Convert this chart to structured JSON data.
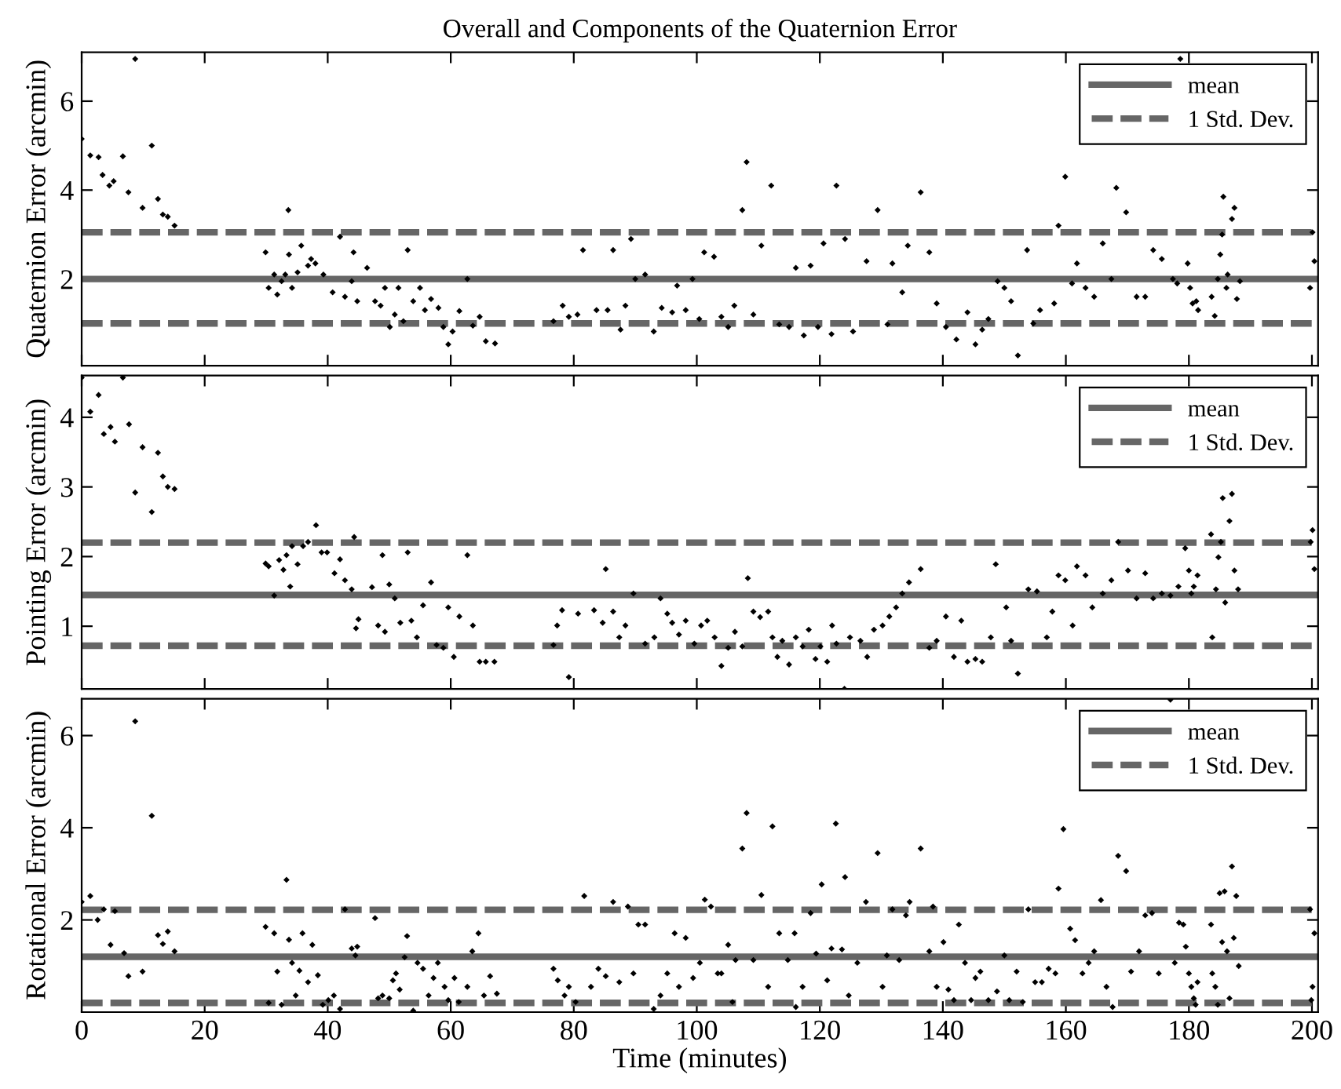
{
  "chart_data": [
    {
      "type": "scatter",
      "title": "Overall and Components of the Quaternion Error",
      "ylabel": "Quaternion Error (arcmin)",
      "xlim": [
        0,
        201
      ],
      "xticks": [
        0,
        20,
        40,
        60,
        80,
        100,
        120,
        140,
        160,
        180,
        200
      ],
      "ylim": [
        0.05,
        7.1
      ],
      "yticks": [
        2,
        4,
        6
      ],
      "tick_labels": "y",
      "grid": false,
      "legend": "top right",
      "marker": "diamond",
      "series": [
        {
          "color": "#000000",
          "x": [
            0,
            1.4,
            2.75,
            3.4,
            4.5,
            5.2,
            6.7,
            7.6,
            8.7,
            9.9,
            11.4,
            12.4,
            13.2,
            14.0,
            15.1,
            29.9,
            30.4,
            31.3,
            31.8,
            32.5,
            33.1,
            33.6,
            33.7,
            34.2,
            35.1,
            35.7,
            36.8,
            37.3,
            38.0,
            39.3,
            40.8,
            42.0,
            42.8,
            43.9,
            44.2,
            44.8,
            46.4,
            47.7,
            48.6,
            49.3,
            50.1,
            50.9,
            51.5,
            52.3,
            53.0,
            53.9,
            55.0,
            55.8,
            56.8,
            58.0,
            58.8,
            59.6,
            60.3,
            61.4,
            62.7,
            63.6,
            64.7,
            65.7,
            67.2,
            76.7,
            78.2,
            79.2,
            80.6,
            81.5,
            83.7,
            85.5,
            86.4,
            87.6,
            88.4,
            89.3,
            90.0,
            91.6,
            93.0,
            94.3,
            96.0,
            96.8,
            98.2,
            99.3,
            100.4,
            101.2,
            102.8,
            104.0,
            105.1,
            106.1,
            107.4,
            108.1,
            109.2,
            110.5,
            112.1,
            113.4,
            115.0,
            116.1,
            117.4,
            118.5,
            119.7,
            120.6,
            121.9,
            122.7,
            124.1,
            125.4,
            127.6,
            129.4,
            131.0,
            131.8,
            133.4,
            134.3,
            136.4,
            137.8,
            139.0,
            140.5,
            142.2,
            144.0,
            145.3,
            146.4,
            147.4,
            148.9,
            150.0,
            151.1,
            152.2,
            153.7,
            154.7,
            155.8,
            158.1,
            158.8,
            159.9,
            161.0,
            161.8,
            163.2,
            164.6,
            166.0,
            167.4,
            168.2,
            169.8,
            171.5,
            172.9,
            174.2,
            175.6,
            177.4,
            178.1,
            178.6,
            179.8,
            180.2,
            180.6,
            181.2,
            181.5,
            183.7,
            184.2,
            184.7,
            185.1,
            185.4,
            185.6,
            186.1,
            186.3,
            187.0,
            187.4,
            187.8,
            188.3,
            199.7,
            200.4,
            200.1
          ],
          "values": [
            5.15,
            4.78,
            4.74,
            4.34,
            4.1,
            4.2,
            4.76,
            3.95,
            6.95,
            3.6,
            5.0,
            3.8,
            3.45,
            3.4,
            3.2,
            2.6,
            1.8,
            2.1,
            1.65,
            1.95,
            2.1,
            3.55,
            2.55,
            1.8,
            2.15,
            2.75,
            2.3,
            2.45,
            2.35,
            2.1,
            1.7,
            2.95,
            1.6,
            1.95,
            2.6,
            1.5,
            2.25,
            1.5,
            1.4,
            1.8,
            0.92,
            1.2,
            1.8,
            1.05,
            2.65,
            1.5,
            1.8,
            1.3,
            1.55,
            1.35,
            0.92,
            0.53,
            0.82,
            1.28,
            2.0,
            0.95,
            1.15,
            0.6,
            0.55,
            1.05,
            1.4,
            1.15,
            1.2,
            2.65,
            1.3,
            1.3,
            2.65,
            0.86,
            1.4,
            2.9,
            2.0,
            2.1,
            0.82,
            1.35,
            1.25,
            1.85,
            1.3,
            2.0,
            1.1,
            2.6,
            2.5,
            1.15,
            0.92,
            1.4,
            3.55,
            4.63,
            1.2,
            2.75,
            4.1,
            0.98,
            0.92,
            2.25,
            0.73,
            2.3,
            0.92,
            2.8,
            0.76,
            4.1,
            2.9,
            0.82,
            2.4,
            3.55,
            0.98,
            2.35,
            1.7,
            2.75,
            3.95,
            2.6,
            1.45,
            0.92,
            0.64,
            1.25,
            0.53,
            0.86,
            1.1,
            1.95,
            1.8,
            1.5,
            0.28,
            2.65,
            1.0,
            1.3,
            1.45,
            3.2,
            4.3,
            1.9,
            2.35,
            1.8,
            1.6,
            2.8,
            2.0,
            4.05,
            3.5,
            1.6,
            1.6,
            2.65,
            2.45,
            2.0,
            1.9,
            6.95,
            2.35,
            1.8,
            1.45,
            1.5,
            1.3,
            1.6,
            1.17,
            2.0,
            2.55,
            3.0,
            3.85,
            1.8,
            2.1,
            3.35,
            3.6,
            1.55,
            1.95,
            1.8,
            2.4,
            3.05
          ]
        }
      ],
      "ref_lines": [
        {
          "axis": "y",
          "value": 2.0,
          "label": "mean",
          "color": "#666666",
          "line_style": "solid"
        },
        {
          "axis": "y",
          "value": 3.05,
          "label": "1 Std. Dev.",
          "color": "#666666",
          "line_style": "dashed"
        },
        {
          "axis": "y",
          "value": 1.0,
          "color": "#666666",
          "line_style": "dashed"
        }
      ]
    },
    {
      "type": "scatter",
      "ylabel": "Pointing Error (arcmin)",
      "xlim": [
        0,
        201
      ],
      "xticks": [
        0,
        20,
        40,
        60,
        80,
        100,
        120,
        140,
        160,
        180,
        200
      ],
      "ylim": [
        0.1,
        4.6
      ],
      "yticks": [
        1,
        2,
        3,
        4
      ],
      "tick_labels": "y",
      "grid": false,
      "legend": "top right",
      "marker": "diamond",
      "series": [
        {
          "color": "#000000",
          "x": [
            0,
            1.4,
            2.75,
            3.6,
            4.7,
            5.4,
            6.7,
            7.7,
            8.7,
            9.9,
            11.4,
            12.4,
            13.2,
            14.0,
            15.1,
            29.9,
            30.4,
            31.3,
            32.1,
            32.8,
            33.3,
            33.9,
            34.2,
            35.1,
            36.0,
            36.8,
            38.1,
            39.0,
            39.9,
            41.1,
            42.0,
            42.8,
            43.9,
            44.3,
            44.6,
            45.0,
            47.2,
            48.2,
            48.9,
            49.3,
            50.0,
            50.9,
            51.8,
            53.0,
            53.6,
            54.5,
            55.5,
            56.8,
            57.7,
            58.8,
            59.6,
            60.5,
            61.4,
            62.7,
            63.6,
            64.7,
            65.7,
            67.1,
            76.7,
            77.3,
            78.1,
            79.2,
            80.7,
            83.3,
            84.7,
            85.2,
            86.4,
            87.4,
            88.4,
            89.7,
            91.6,
            93.1,
            94.1,
            95.2,
            96.0,
            97.1,
            98.2,
            99.6,
            100.7,
            101.7,
            102.9,
            104.0,
            105.1,
            106.2,
            107.4,
            108.3,
            109.2,
            110.3,
            111.6,
            112.3,
            113.1,
            113.9,
            115.0,
            116.1,
            117.2,
            118.2,
            119.3,
            120.1,
            121.2,
            122.0,
            122.7,
            124.0,
            124.9,
            126.6,
            127.7,
            128.8,
            130.2,
            131.3,
            132.4,
            133.4,
            134.5,
            136.4,
            137.8,
            139.0,
            140.5,
            141.8,
            143.0,
            144.0,
            145.3,
            146.4,
            147.8,
            148.6,
            150.3,
            151.1,
            152.2,
            153.9,
            155.3,
            156.9,
            157.8,
            158.8,
            159.9,
            161.1,
            161.8,
            163.2,
            164.3,
            166.0,
            167.4,
            168.5,
            170.1,
            171.5,
            172.9,
            174.2,
            175.6,
            177.0,
            178.3,
            179.4,
            180.0,
            180.4,
            180.8,
            181.4,
            183.6,
            183.8,
            184.4,
            184.8,
            185.2,
            185.5,
            185.9,
            186.6,
            187.0,
            187.4,
            188.0,
            200.1,
            200.4,
            199.8
          ],
          "values": [
            4.57,
            4.08,
            4.32,
            3.76,
            3.86,
            3.65,
            4.57,
            3.9,
            2.92,
            3.57,
            2.64,
            3.49,
            3.15,
            3.0,
            2.97,
            1.9,
            1.86,
            1.44,
            1.95,
            1.81,
            2.02,
            1.57,
            2.15,
            1.89,
            2.15,
            2.21,
            2.45,
            2.06,
            2.06,
            1.76,
            1.96,
            1.66,
            1.53,
            2.28,
            0.97,
            1.1,
            1.56,
            1.01,
            2.02,
            0.92,
            1.6,
            1.4,
            1.05,
            2.06,
            1.08,
            0.84,
            1.3,
            1.63,
            0.73,
            0.69,
            1.27,
            0.56,
            1.14,
            2.02,
            1.01,
            0.49,
            0.49,
            0.49,
            0.73,
            1.01,
            1.23,
            0.27,
            1.18,
            1.23,
            1.05,
            1.82,
            1.21,
            0.84,
            1.01,
            1.47,
            0.75,
            0.84,
            1.4,
            1.18,
            1.05,
            0.88,
            1.08,
            0.75,
            1.01,
            1.08,
            0.84,
            0.43,
            0.69,
            0.92,
            0.71,
            1.69,
            1.21,
            1.13,
            1.21,
            0.84,
            0.56,
            0.79,
            0.45,
            0.84,
            0.71,
            0.95,
            0.53,
            0.71,
            0.49,
            1.01,
            0.75,
            0.1,
            0.84,
            0.79,
            0.56,
            0.95,
            1.01,
            1.14,
            1.27,
            1.47,
            1.63,
            1.82,
            0.69,
            0.79,
            1.14,
            0.56,
            1.08,
            0.49,
            0.53,
            0.49,
            0.84,
            1.89,
            1.27,
            0.79,
            0.32,
            1.53,
            1.5,
            0.84,
            1.21,
            1.73,
            1.66,
            1.01,
            1.86,
            1.73,
            1.27,
            1.47,
            1.66,
            2.21,
            1.8,
            1.4,
            1.76,
            1.4,
            1.47,
            1.44,
            1.57,
            2.12,
            1.8,
            1.47,
            1.57,
            1.73,
            2.32,
            0.84,
            1.53,
            1.99,
            2.21,
            2.84,
            1.34,
            2.51,
            2.9,
            1.8,
            1.53,
            2.38,
            1.82,
            2.21
          ]
        }
      ],
      "ref_lines": [
        {
          "axis": "y",
          "value": 1.45,
          "label": "mean",
          "color": "#666666",
          "line_style": "solid"
        },
        {
          "axis": "y",
          "value": 2.2,
          "label": "1 Std. Dev.",
          "color": "#666666",
          "line_style": "dashed"
        },
        {
          "axis": "y",
          "value": 0.72,
          "color": "#666666",
          "line_style": "dashed"
        }
      ]
    },
    {
      "type": "scatter",
      "xlabel": "Time (minutes)",
      "ylabel": "Rotational Error (arcmin)",
      "xlim": [
        0,
        201
      ],
      "xticks": [
        0,
        20,
        40,
        60,
        80,
        100,
        120,
        140,
        160,
        180,
        200
      ],
      "ylim": [
        0,
        6.8
      ],
      "yticks": [
        2,
        4,
        6
      ],
      "grid": false,
      "legend": "top right",
      "marker": "diamond",
      "series": [
        {
          "color": "#000000",
          "x": [
            0,
            1.4,
            2.6,
            3.6,
            4.7,
            5.4,
            6.9,
            7.6,
            8.7,
            9.9,
            11.4,
            12.4,
            13.2,
            14.0,
            15.1,
            29.9,
            30.4,
            31.3,
            31.8,
            32.5,
            33.3,
            33.7,
            34.2,
            34.8,
            35.4,
            35.9,
            36.8,
            37.5,
            38.4,
            39.2,
            40.1,
            41.0,
            42.0,
            42.8,
            43.9,
            44.5,
            44.8,
            47.7,
            48.2,
            48.9,
            50.0,
            50.6,
            51.1,
            51.7,
            52.5,
            52.9,
            53.9,
            54.6,
            55.5,
            56.4,
            57.2,
            57.9,
            59.0,
            59.6,
            60.6,
            61.3,
            62.7,
            63.5,
            64.5,
            65.4,
            66.4,
            67.5,
            76.7,
            77.4,
            78.5,
            79.2,
            80.3,
            81.7,
            82.8,
            84.0,
            85.2,
            86.4,
            87.4,
            88.8,
            89.7,
            90.5,
            91.6,
            93.0,
            94.1,
            95.2,
            96.4,
            97.1,
            98.2,
            99.4,
            100.5,
            101.3,
            102.3,
            103.4,
            104.0,
            105.1,
            105.8,
            106.3,
            107.4,
            108.1,
            109.2,
            110.5,
            111.6,
            112.3,
            113.4,
            114.8,
            115.9,
            116.1,
            117.2,
            118.5,
            119.4,
            120.3,
            121.2,
            121.9,
            122.6,
            123.6,
            124.1,
            124.7,
            126.1,
            127.5,
            129.4,
            130.2,
            130.9,
            131.8,
            132.9,
            134.0,
            134.6,
            136.4,
            137.8,
            138.4,
            139.0,
            140.1,
            140.9,
            141.8,
            142.6,
            143.6,
            144.6,
            145.3,
            146.1,
            147.4,
            148.8,
            150.0,
            150.8,
            152.0,
            153.0,
            153.9,
            155.0,
            156.1,
            157.2,
            158.3,
            158.8,
            159.6,
            160.7,
            161.5,
            162.7,
            163.7,
            164.6,
            165.7,
            166.6,
            167.6,
            168.5,
            169.8,
            170.6,
            171.9,
            172.9,
            174.0,
            175.1,
            177.0,
            177.7,
            178.4,
            179.1,
            179.5,
            180.0,
            180.4,
            180.8,
            181.1,
            181.4,
            183.6,
            183.8,
            184.3,
            184.7,
            185.0,
            185.4,
            185.8,
            186.2,
            186.6,
            187.0,
            187.3,
            187.7,
            188.1,
            199.7,
            200.1,
            200.4,
            199.9
          ],
          "values": [
            2.39,
            2.52,
            2.0,
            2.23,
            1.46,
            2.19,
            1.28,
            0.78,
            6.31,
            0.88,
            4.26,
            1.67,
            1.48,
            1.75,
            1.32,
            1.85,
            0.2,
            1.71,
            0.88,
            0.16,
            2.87,
            1.57,
            1.07,
            0.36,
            0.9,
            1.71,
            0.65,
            1.46,
            0.8,
            0.16,
            0.26,
            0.36,
            0.07,
            2.23,
            1.38,
            1.23,
            1.42,
            2.04,
            0.3,
            0.36,
            0.3,
            0.69,
            0.84,
            0.49,
            1.19,
            1.65,
            0.03,
            1.07,
            0.94,
            0.36,
            0.74,
            1.07,
            0.55,
            0.26,
            0.74,
            0.22,
            0.55,
            1.32,
            1.71,
            0.36,
            0.78,
            0.4,
            0.94,
            0.69,
            0.36,
            0.55,
            0.22,
            2.52,
            0.55,
            0.94,
            0.78,
            2.39,
            0.65,
            2.29,
            0.84,
            1.9,
            1.9,
            0.07,
            0.36,
            0.84,
            1.71,
            0.55,
            1.61,
            0.74,
            1.07,
            2.44,
            2.29,
            0.84,
            0.84,
            1.46,
            0.22,
            1.13,
            3.55,
            4.32,
            1.13,
            2.54,
            0.55,
            4.03,
            1.71,
            1.13,
            1.71,
            0.11,
            0.55,
            2.15,
            1.27,
            2.77,
            0.69,
            1.38,
            4.09,
            1.36,
            2.93,
            0.36,
            1.07,
            2.39,
            3.45,
            0.55,
            1.23,
            2.23,
            1.13,
            2.1,
            2.39,
            3.55,
            1.32,
            2.29,
            0.55,
            1.52,
            0.49,
            0.26,
            1.9,
            1.07,
            0.26,
            0.74,
            0.88,
            0.26,
            0.45,
            1.23,
            0.26,
            0.88,
            0.22,
            2.23,
            0.65,
            0.65,
            0.94,
            0.84,
            2.68,
            3.97,
            1.81,
            1.56,
            0.84,
            1.07,
            1.32,
            2.43,
            0.55,
            0.11,
            3.39,
            3.06,
            0.88,
            1.32,
            2.1,
            2.15,
            0.84,
            6.78,
            1.07,
            1.94,
            1.9,
            1.42,
            0.84,
            0.55,
            0.3,
            0.16,
            0.65,
            1.9,
            0.84,
            0.55,
            0.16,
            2.58,
            1.52,
            2.62,
            1.32,
            0.3,
            3.16,
            1.61,
            2.52,
            1.0,
            2.23,
            0.55,
            1.71,
            0.26
          ]
        }
      ],
      "ref_lines": [
        {
          "axis": "y",
          "value": 1.2,
          "label": "mean",
          "color": "#666666",
          "line_style": "solid"
        },
        {
          "axis": "y",
          "value": 2.22,
          "label": "1 Std. Dev.",
          "color": "#666666",
          "line_style": "dashed"
        },
        {
          "axis": "y",
          "value": 0.2,
          "color": "#666666",
          "line_style": "dashed"
        }
      ]
    }
  ]
}
